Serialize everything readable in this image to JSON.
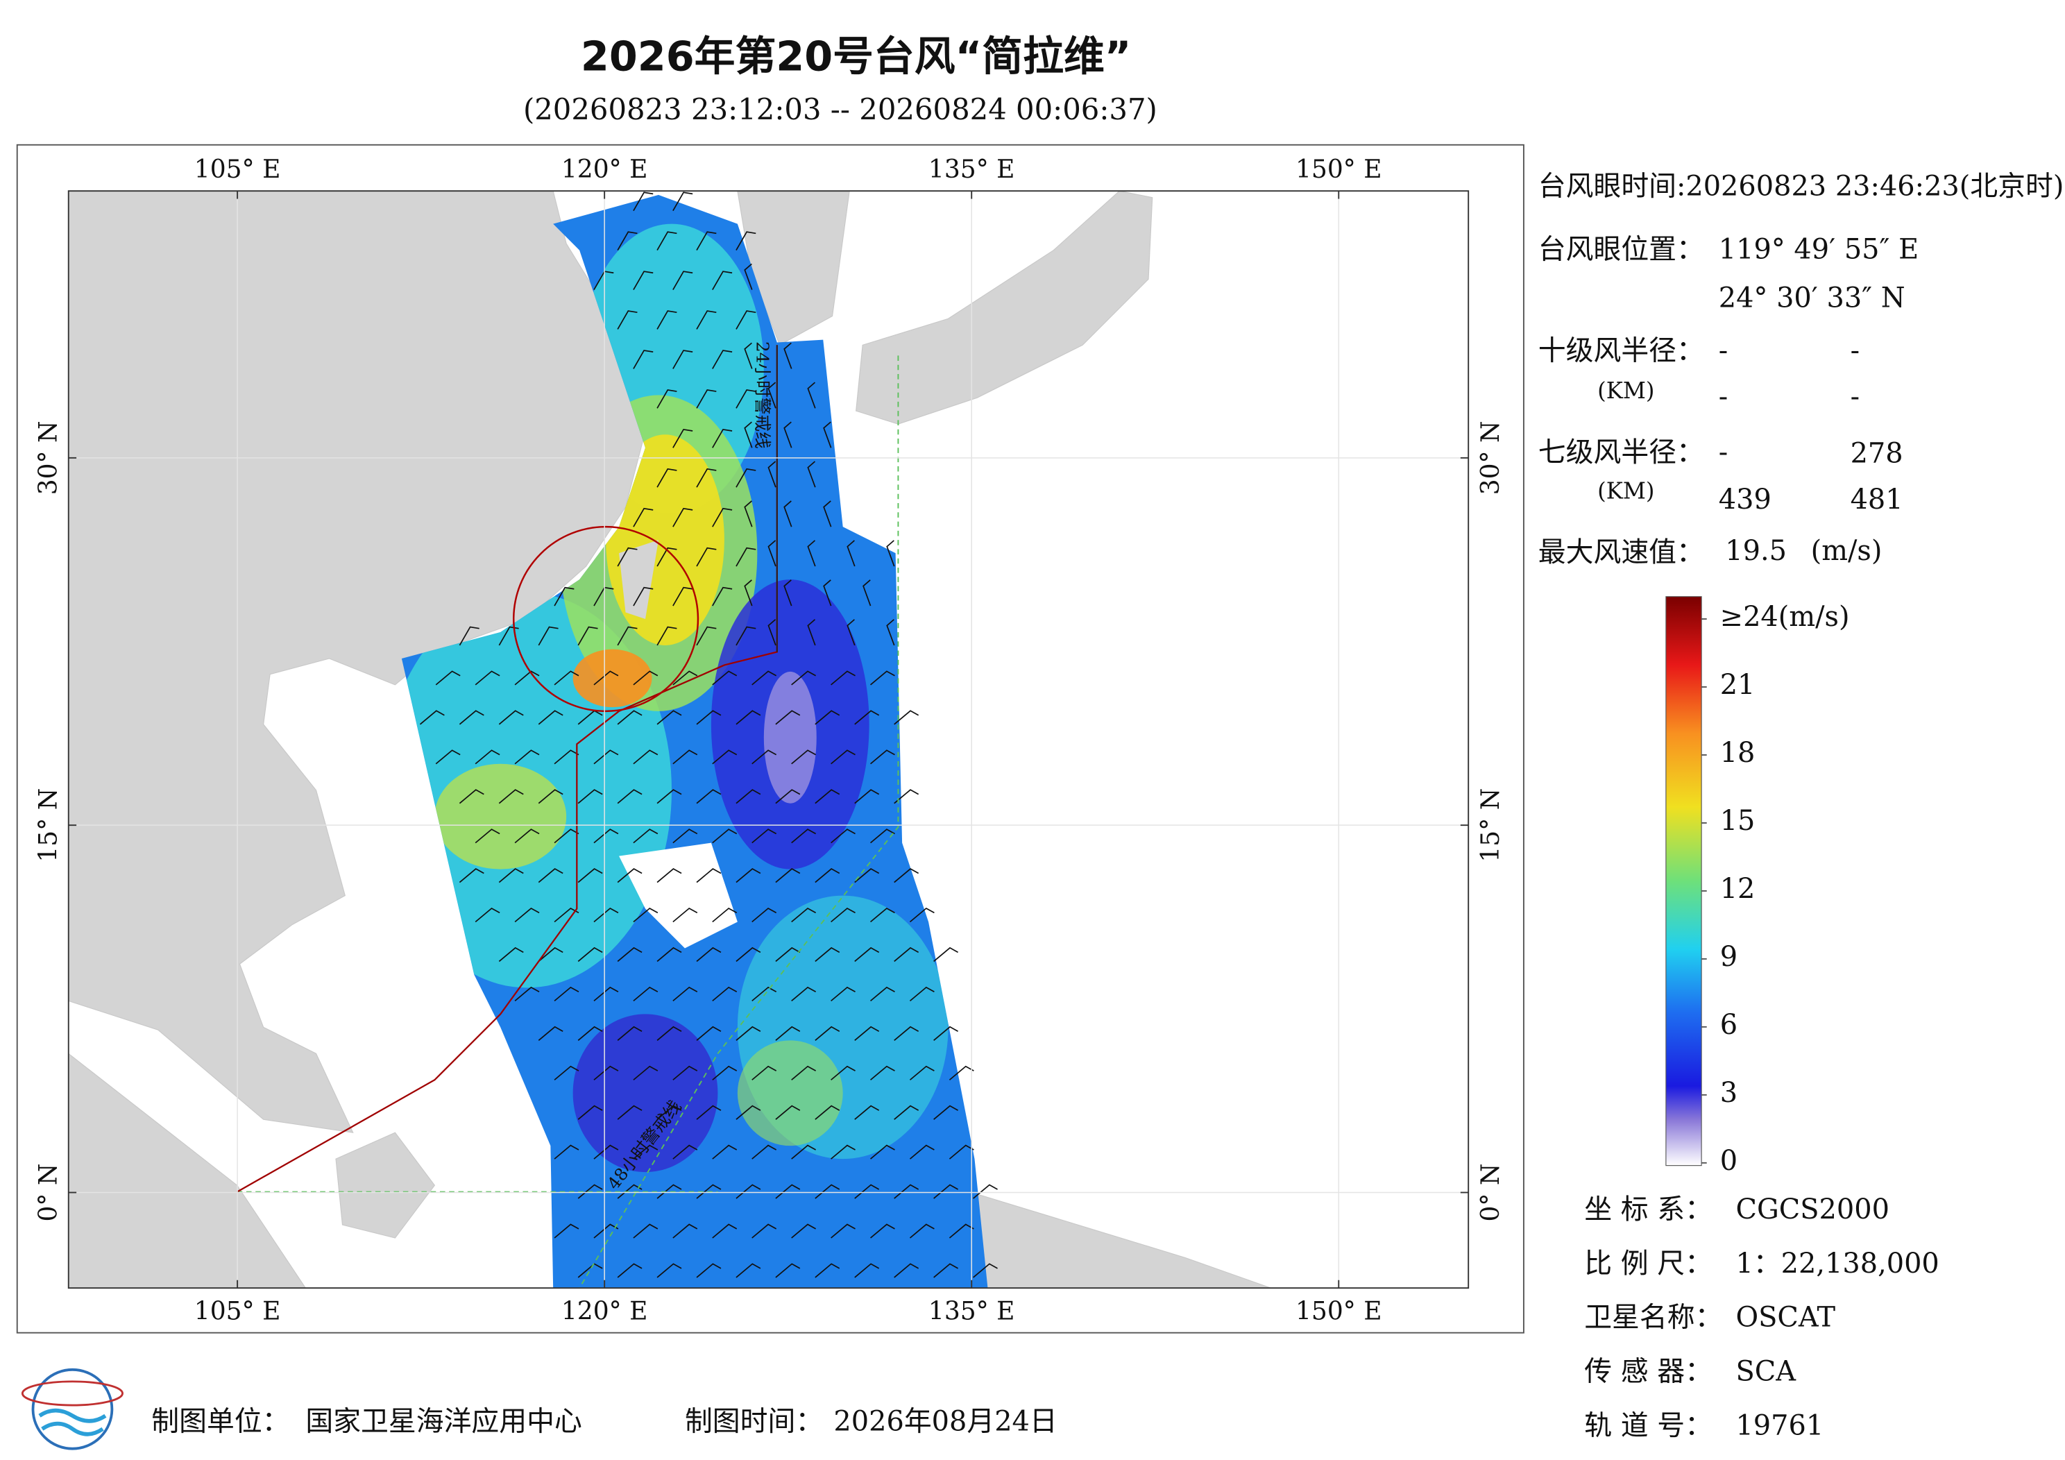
{
  "header": {
    "title": "2026年第20号台风“简拉维”",
    "subtitle": "(20260823 23:12:03 -- 20260824 00:06:37)"
  },
  "map": {
    "lonlim": [
      98.1,
      155.3
    ],
    "latlim": [
      -3.9,
      40.9
    ],
    "xticks": [
      {
        "value": 105,
        "label": "105° E"
      },
      {
        "value": 120,
        "label": "120° E"
      },
      {
        "value": 135,
        "label": "135° E"
      },
      {
        "value": 150,
        "label": "150° E"
      }
    ],
    "yticks": [
      {
        "value": 0,
        "label": "0° N"
      },
      {
        "value": 15,
        "label": "15° N"
      },
      {
        "value": 30,
        "label": "30° N"
      }
    ],
    "annotations": [
      "24小时警戒线",
      "48小时警戒线"
    ]
  },
  "colorbar": {
    "lim": [
      0,
      24
    ],
    "ticks": [
      0,
      3,
      6,
      9,
      12,
      15,
      18,
      21,
      {
        "value": 24,
        "label": "≥24(m/s)"
      }
    ]
  },
  "info": {
    "eye_time": {
      "label": "台风眼时间:",
      "value": "20260823 23:46:23(北京时)"
    },
    "eye_position": {
      "label": "台风眼位置：",
      "lon": "119° 49′ 55″ E",
      "lat": "24° 30′ 33″ N"
    },
    "force10_radius": {
      "label": "十级风半径：",
      "unit": "(KM)",
      "values": [
        "-",
        "-",
        "-",
        "-"
      ]
    },
    "force7_radius": {
      "label": "七级风半径：",
      "unit": "(KM)",
      "values": [
        "-",
        278,
        439,
        481
      ]
    },
    "max_wind": {
      "label": "最大风速值：",
      "value": 19.5,
      "unit": "(m/s)"
    },
    "meta": [
      {
        "label": "坐 标 系：",
        "value": "CGCS2000"
      },
      {
        "label": "比 例 尺：",
        "value": "1：22,138,000"
      },
      {
        "label": "卫星名称：",
        "value": "OSCAT"
      },
      {
        "label": "传 感 器：",
        "value": "SCA"
      },
      {
        "label": "轨 道 号：",
        "value": "19761"
      }
    ]
  },
  "footer": {
    "producer_label": "制图单位：",
    "producer": "国家卫星海洋应用中心",
    "date_label": "制图时间：",
    "date": "2026年08月24日"
  }
}
